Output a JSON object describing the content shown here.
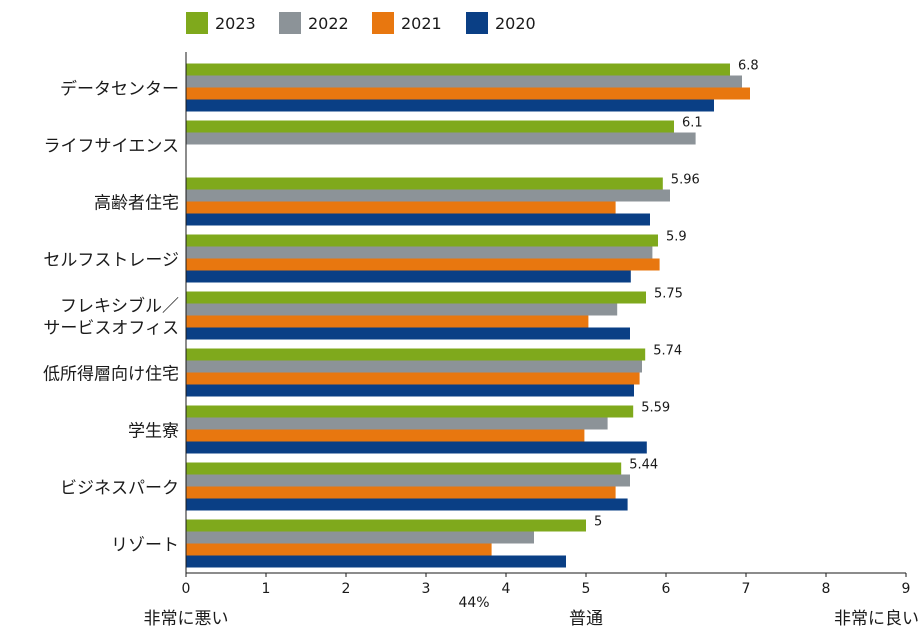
{
  "chart_data": {
    "type": "bar",
    "orientation": "horizontal",
    "categories": [
      "データセンター",
      "ライフサイエンス",
      "高齢者住宅",
      "セルフストレージ",
      "フレキシブル／\nサービスオフィス",
      "低所得層向け住宅",
      "学生寮",
      "ビジネスパーク",
      "リゾート"
    ],
    "series": [
      {
        "name": "2023",
        "color": "#7fa91c",
        "values": [
          6.8,
          6.1,
          5.96,
          5.9,
          5.75,
          5.74,
          5.59,
          5.44,
          5.0
        ]
      },
      {
        "name": "2022",
        "color": "#8c9398",
        "values": [
          6.95,
          6.37,
          6.05,
          5.83,
          5.39,
          5.7,
          5.27,
          5.55,
          4.35
        ]
      },
      {
        "name": "2021",
        "color": "#e8770f",
        "values": [
          7.05,
          null,
          5.37,
          5.92,
          5.03,
          5.67,
          4.98,
          5.37,
          3.82
        ]
      },
      {
        "name": "2020",
        "color": "#0a3f85",
        "values": [
          6.6,
          null,
          5.8,
          5.56,
          5.55,
          5.6,
          5.76,
          5.52,
          4.75
        ]
      }
    ],
    "data_labels": [
      "6.8",
      "6.1",
      "5.96",
      "5.9",
      "5.75",
      "5.74",
      "5.59",
      "5.44",
      "5"
    ],
    "xlim": [
      0,
      9
    ],
    "x_ticks": [
      "0",
      "1",
      "2",
      "3",
      "4",
      "5",
      "6",
      "7",
      "8",
      "9"
    ],
    "anchor_labels": {
      "low": "非常に悪い",
      "mid": "普通",
      "high": "非常に良い"
    },
    "annotation": "44%",
    "legend_position": "top",
    "grid": false
  }
}
